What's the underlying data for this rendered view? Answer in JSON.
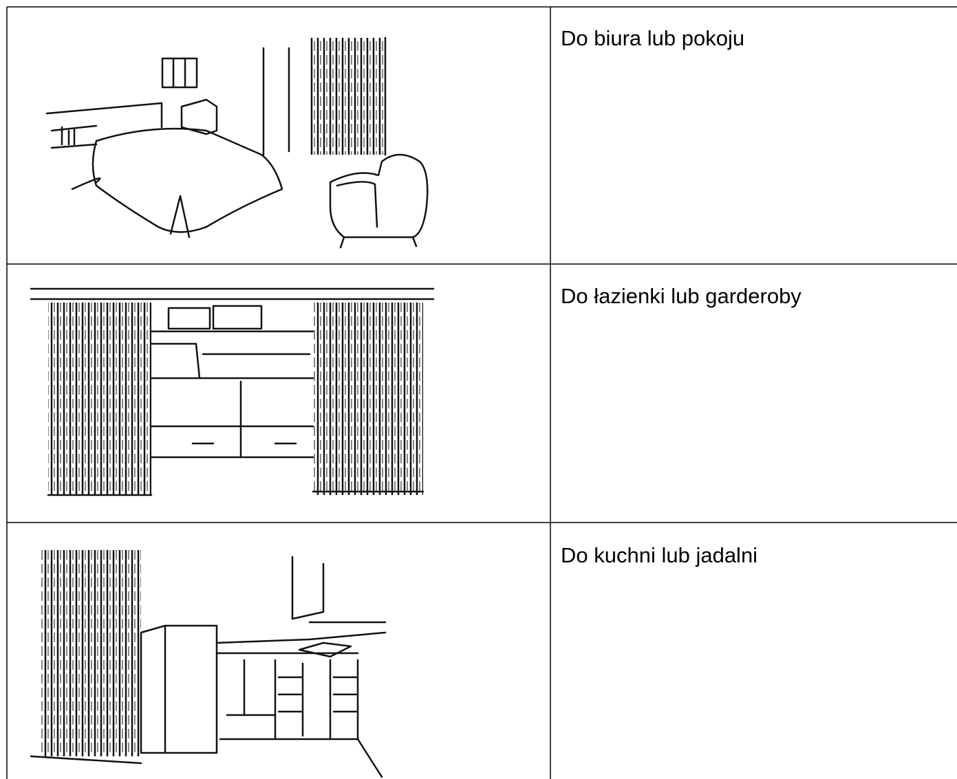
{
  "table": {
    "rows": [
      "Do biura lub pokoju",
      "Do łazienki lub garderoby",
      "Do kuchni lub jadalni"
    ]
  }
}
